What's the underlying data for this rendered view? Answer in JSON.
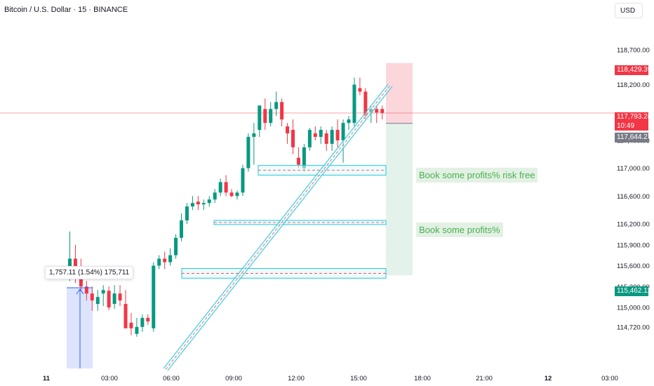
{
  "header": {
    "symbol_title": "Bitcoin / U.S. Dollar · 15 · BINANCE",
    "currency_button": "USD"
  },
  "colors": {
    "bull": "#089981",
    "bear": "#f23645",
    "zone_border": "#26c6da",
    "zone_fill": "#e0f7fa",
    "trendline": "#26c6da",
    "stop_zone": "#fbd7dc",
    "target_zone": "#e3f3ec",
    "measure": "#2962ff",
    "note_text": "#4caf50"
  },
  "measure_label": "1,757.11 (1.54%) 175,711",
  "annotations": {
    "note_1": "Book some profits% risk free",
    "note_2": "Book some profits%"
  },
  "price_badges": {
    "stop": "118,429.39",
    "current": "117,793.28",
    "countdown": "10:49",
    "entry": "117,644.27",
    "target": "115,462.11"
  },
  "chart_data": {
    "type": "candlestick",
    "symbol": "Bitcoin / U.S. Dollar",
    "interval": "15",
    "exchange": "BINANCE",
    "y_axis": {
      "ticks": [
        "118,700.00",
        "118,200.00",
        "117,400.00",
        "117,000.00",
        "116,600.00",
        "116,200.00",
        "115,900.00",
        "115,600.00",
        "115,300.00",
        "115,000.00",
        "114,720.00"
      ],
      "range": [
        114500,
        118950
      ]
    },
    "x_axis": {
      "ticks": [
        "11",
        "03:00",
        "06:00",
        "09:00",
        "12:00",
        "15:00",
        "18:00",
        "21:00",
        "12",
        "03:00"
      ]
    },
    "candles": [
      {
        "o": 115560,
        "h": 116090,
        "l": 115380,
        "c": 115700
      },
      {
        "o": 115700,
        "h": 115900,
        "l": 115350,
        "c": 115420
      },
      {
        "o": 115450,
        "h": 115700,
        "l": 115230,
        "c": 115300
      },
      {
        "o": 115300,
        "h": 115380,
        "l": 115100,
        "c": 115200
      },
      {
        "o": 115200,
        "h": 115300,
        "l": 114950,
        "c": 115100
      },
      {
        "o": 115050,
        "h": 115250,
        "l": 114950,
        "c": 115150
      },
      {
        "o": 115200,
        "h": 115320,
        "l": 115020,
        "c": 115250
      },
      {
        "o": 115240,
        "h": 115300,
        "l": 114960,
        "c": 115000
      },
      {
        "o": 115050,
        "h": 115320,
        "l": 114980,
        "c": 115200
      },
      {
        "o": 115200,
        "h": 115320,
        "l": 115020,
        "c": 115100
      },
      {
        "o": 115050,
        "h": 115250,
        "l": 114700,
        "c": 114700
      },
      {
        "o": 114780,
        "h": 114920,
        "l": 114600,
        "c": 114700
      },
      {
        "o": 114620,
        "h": 114850,
        "l": 114580,
        "c": 114720
      },
      {
        "o": 114720,
        "h": 114900,
        "l": 114650,
        "c": 114850
      },
      {
        "o": 114850,
        "h": 114900,
        "l": 114750,
        "c": 114800
      },
      {
        "o": 114700,
        "h": 115650,
        "l": 114650,
        "c": 115600
      },
      {
        "o": 115600,
        "h": 115750,
        "l": 115550,
        "c": 115700
      },
      {
        "o": 115700,
        "h": 115800,
        "l": 115550,
        "c": 115650
      },
      {
        "o": 115650,
        "h": 115850,
        "l": 115600,
        "c": 115750
      },
      {
        "o": 115750,
        "h": 116050,
        "l": 115700,
        "c": 116000
      },
      {
        "o": 116000,
        "h": 116350,
        "l": 115950,
        "c": 116250
      },
      {
        "o": 116250,
        "h": 116500,
        "l": 116200,
        "c": 116450
      },
      {
        "o": 116450,
        "h": 116600,
        "l": 116400,
        "c": 116500
      },
      {
        "o": 116520,
        "h": 116600,
        "l": 116400,
        "c": 116480
      },
      {
        "o": 116480,
        "h": 116550,
        "l": 116400,
        "c": 116500
      },
      {
        "o": 116500,
        "h": 116600,
        "l": 116450,
        "c": 116550
      },
      {
        "o": 116550,
        "h": 116700,
        "l": 116500,
        "c": 116650
      },
      {
        "o": 116650,
        "h": 116850,
        "l": 116600,
        "c": 116800
      },
      {
        "o": 116800,
        "h": 116900,
        "l": 116600,
        "c": 116650
      },
      {
        "o": 116650,
        "h": 116700,
        "l": 116580,
        "c": 116600
      },
      {
        "o": 116600,
        "h": 116680,
        "l": 116550,
        "c": 116650
      },
      {
        "o": 116650,
        "h": 117050,
        "l": 116600,
        "c": 117000
      },
      {
        "o": 117000,
        "h": 117500,
        "l": 116950,
        "c": 117450
      },
      {
        "o": 117450,
        "h": 117650,
        "l": 117050,
        "c": 117500
      },
      {
        "o": 117550,
        "h": 117900,
        "l": 117450,
        "c": 117900
      },
      {
        "o": 117850,
        "h": 118000,
        "l": 117550,
        "c": 117650
      },
      {
        "o": 117650,
        "h": 117950,
        "l": 117600,
        "c": 117850
      },
      {
        "o": 117850,
        "h": 118100,
        "l": 117750,
        "c": 117950
      },
      {
        "o": 117950,
        "h": 118000,
        "l": 117600,
        "c": 117700
      },
      {
        "o": 117600,
        "h": 117650,
        "l": 117350,
        "c": 117500
      },
      {
        "o": 117550,
        "h": 117700,
        "l": 117200,
        "c": 117300
      },
      {
        "o": 117150,
        "h": 117300,
        "l": 117000,
        "c": 117050
      },
      {
        "o": 117000,
        "h": 117350,
        "l": 116950,
        "c": 117300
      },
      {
        "o": 117300,
        "h": 117580,
        "l": 117250,
        "c": 117550
      },
      {
        "o": 117500,
        "h": 117600,
        "l": 117400,
        "c": 117450
      },
      {
        "o": 117450,
        "h": 117600,
        "l": 117350,
        "c": 117550
      },
      {
        "o": 117500,
        "h": 117550,
        "l": 117250,
        "c": 117350
      },
      {
        "o": 117350,
        "h": 117600,
        "l": 117250,
        "c": 117550
      },
      {
        "o": 117550,
        "h": 117700,
        "l": 117300,
        "c": 117400
      },
      {
        "o": 117400,
        "h": 117700,
        "l": 117080,
        "c": 117650
      },
      {
        "o": 117650,
        "h": 117750,
        "l": 117550,
        "c": 117700
      },
      {
        "o": 117650,
        "h": 118300,
        "l": 117600,
        "c": 118200
      },
      {
        "o": 118150,
        "h": 118300,
        "l": 118050,
        "c": 118100
      },
      {
        "o": 118100,
        "h": 118150,
        "l": 117700,
        "c": 117750
      },
      {
        "o": 117800,
        "h": 117900,
        "l": 117650,
        "c": 117850
      },
      {
        "o": 117850,
        "h": 117900,
        "l": 117650,
        "c": 117800
      },
      {
        "o": 117850,
        "h": 117900,
        "l": 117700,
        "c": 117793.28
      }
    ]
  }
}
